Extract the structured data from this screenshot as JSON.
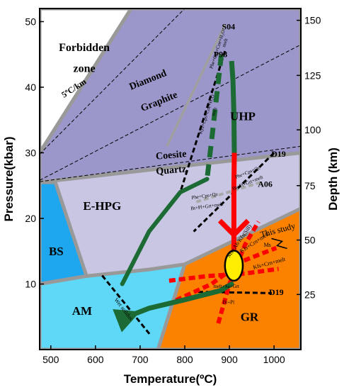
{
  "chart_data": {
    "type": "pt-diagram",
    "title": "",
    "xlabel": "Temperature(ºC)",
    "ylabel_left": "Pressure(kbar)",
    "ylabel_right": "Depth (km)",
    "xlim": [
      475,
      1060
    ],
    "ylim": [
      0,
      52
    ],
    "x_ticks": [
      500,
      600,
      700,
      800,
      900,
      1000
    ],
    "y_ticks": [
      10,
      20,
      30,
      40,
      50
    ],
    "right_ticks": [
      {
        "p": 8.4,
        "label": "25"
      },
      {
        "p": 16.7,
        "label": "50"
      },
      {
        "p": 25.0,
        "label": "75"
      },
      {
        "p": 33.5,
        "label": "100"
      },
      {
        "p": 41.8,
        "label": "125"
      },
      {
        "p": 50.2,
        "label": "150"
      }
    ],
    "colors": {
      "forbidden": "#ffffff",
      "uhp": "#9b97cb",
      "ehpg": "#c8c6e3",
      "bs": "#1ea7ee",
      "am": "#5fd8f7",
      "gr": "#fb8200",
      "boundary": "#999999",
      "path": "#1c6b34",
      "decompression": "#ff0000",
      "peak_ellipse": "#ffee00"
    },
    "fields": [
      {
        "key": "forbidden",
        "label_lines": [
          "Forbidden",
          "zone"
        ],
        "points": [
          [
            475,
            30
          ],
          [
            475,
            52
          ],
          [
            680,
            52
          ]
        ]
      },
      {
        "key": "uhp",
        "label_lines": [
          "UHP"
        ],
        "points": [
          [
            475,
            25.5
          ],
          [
            475,
            30
          ],
          [
            680,
            52
          ],
          [
            1060,
            52
          ],
          [
            1060,
            30
          ]
        ]
      },
      {
        "key": "ehpg",
        "label_lines": [
          "E-HPG"
        ],
        "points": [
          [
            475,
            25.5
          ],
          [
            1060,
            30
          ],
          [
            1060,
            21.5
          ],
          [
            800,
            13
          ],
          [
            720,
            12.2
          ],
          [
            580,
            11.2
          ],
          [
            510,
            25.5
          ]
        ]
      },
      {
        "key": "bs",
        "label_lines": [
          "BS"
        ],
        "points": [
          [
            475,
            25.5
          ],
          [
            510,
            25.5
          ],
          [
            580,
            11.2
          ],
          [
            475,
            10
          ]
        ]
      },
      {
        "key": "am",
        "label_lines": [
          "AM"
        ],
        "points": [
          [
            475,
            10
          ],
          [
            580,
            11.2
          ],
          [
            720,
            12.2
          ],
          [
            800,
            13
          ],
          [
            740,
            0
          ],
          [
            475,
            0
          ]
        ]
      },
      {
        "key": "gr",
        "label_lines": [
          "GR"
        ],
        "points": [
          [
            800,
            13
          ],
          [
            1060,
            21.5
          ],
          [
            1060,
            0
          ],
          [
            740,
            0
          ]
        ]
      }
    ],
    "field_labels": {
      "forbidden": [
        {
          "t": 575,
          "p": 45.5,
          "text": "Forbidden"
        },
        {
          "t": 575,
          "p": 42.3,
          "text": "zone"
        }
      ],
      "uhp": [
        {
          "t": 930,
          "p": 35,
          "text": "UHP"
        }
      ],
      "ehpg": [
        {
          "t": 615,
          "p": 21.3,
          "text": "E-HPG"
        }
      ],
      "bs": [
        {
          "t": 512,
          "p": 14.4,
          "text": "BS"
        }
      ],
      "am": [
        {
          "t": 570,
          "p": 5.3,
          "text": "AM"
        }
      ],
      "gr": [
        {
          "t": 945,
          "p": 4.4,
          "text": "GR"
        }
      ]
    },
    "reference_lines": [
      {
        "label": "5ºC/km",
        "label_pos": [
          555,
          39.5
        ],
        "label_rot": -33,
        "points": [
          [
            475,
            29.8
          ],
          [
            800,
            52
          ]
        ],
        "style": "thin-dash"
      },
      {
        "label": "Coesite",
        "label_pos": [
          770,
          29.2
        ],
        "label_rot": -5,
        "points": [
          [
            475,
            25.6
          ],
          [
            1060,
            31.0
          ]
        ],
        "style": "thin-dash"
      },
      {
        "label": "Quartz",
        "label_pos": [
          770,
          26.9
        ],
        "label_rot": -5,
        "points": [],
        "style": "none"
      },
      {
        "label": "Diamond",
        "label_pos": [
          720,
          40.7
        ],
        "label_rot": -22,
        "points": [
          [
            475,
            25.8
          ],
          [
            1060,
            46.5
          ]
        ],
        "style": "thin-dash"
      },
      {
        "label": "Graphite",
        "label_pos": [
          745,
          37.4
        ],
        "label_rot": -22,
        "points": [],
        "style": "none"
      },
      {
        "label": "S04",
        "label_pos": [
          898,
          48.8
        ],
        "label_rot": 0,
        "points": [
          [
            890,
            49.5
          ],
          [
            760,
            31
          ]
        ],
        "style": "gray-solid"
      },
      {
        "label": "P98",
        "label_pos": [
          880,
          44.6
        ],
        "label_rot": 0,
        "points": [
          [
            890,
            45.5
          ],
          [
            790,
            24
          ]
        ],
        "style": "black-dash"
      },
      {
        "label": "D19",
        "label_pos": [
          1010,
          29.4
        ],
        "label_rot": 0,
        "points": [
          [
            1000,
            30
          ],
          [
            820,
            18
          ]
        ],
        "style": "black-dash"
      },
      {
        "label": "A06",
        "label_pos": [
          980,
          24.8
        ],
        "label_rot": 0,
        "points": [
          [
            970,
            25.5
          ],
          [
            825,
            22.5
          ]
        ],
        "style": "gray-dash"
      },
      {
        "label": "D19",
        "label_pos": [
          1005,
          8.3
        ],
        "label_rot": 0,
        "points": [
          [
            830,
            8.8
          ],
          [
            995,
            8.6
          ]
        ],
        "style": "black-dash"
      },
      {
        "label": "",
        "label_pos": [
          0,
          0
        ],
        "label_rot": 0,
        "points": [
          [
            615,
            11.3
          ],
          [
            722,
            2.3
          ]
        ],
        "style": "black-dash"
      }
    ],
    "reaction_labels": [
      {
        "text": "Phe+Cps+Coe+H₂O",
        "t": 876,
        "p": 45.7,
        "rot": -72,
        "size": 7
      },
      {
        "text": "melt",
        "t": 893,
        "p": 46.7,
        "rot": -72,
        "size": 7
      },
      {
        "text": "Kyz+Cps+Coe+H₂O",
        "t": 852,
        "p": 35.8,
        "rot": -72,
        "size": 7
      },
      {
        "text": "melt",
        "t": 869,
        "p": 36.2,
        "rot": -72,
        "size": 7
      },
      {
        "text": "Phe+Cps+Qz",
        "t": 942,
        "p": 26.8,
        "rot": -22,
        "size": 7
      },
      {
        "text": "Bt+Pl+Grt+melt",
        "t": 942,
        "p": 25.2,
        "rot": -22,
        "size": 7
      },
      {
        "text": "Phe+Cps+Qz",
        "t": 845,
        "p": 23.2,
        "rot": -8,
        "size": 7
      },
      {
        "text": "Bt+Pl+Grt+melt",
        "t": 850,
        "p": 21.6,
        "rot": -8,
        "size": 7
      },
      {
        "text": "Ms+Ab/Kfs(Sill)",
        "t": 925,
        "p": 16.4,
        "rot": -55,
        "size": 8
      },
      {
        "text": "Kfs+Crn+melt",
        "t": 958,
        "p": 16.1,
        "rot": -33,
        "size": 8
      },
      {
        "text": "Ms",
        "t": 985,
        "p": 15.7,
        "rot": 0,
        "size": 8
      },
      {
        "text": "Kfs+Crn+melt",
        "t": 990,
        "p": 12.9,
        "rot": -15,
        "size": 8
      },
      {
        "text": "melt+Sa+Grt",
        "t": 893,
        "p": 9.4,
        "rot": 0,
        "size": 7
      },
      {
        "text": "Bt+Pl",
        "t": 898,
        "p": 7.0,
        "rot": 0,
        "size": 7
      },
      {
        "text": "Wet solidus",
        "t": 660,
        "p": 6.0,
        "rot": 52,
        "size": 8
      }
    ],
    "this_study_label": "This study",
    "this_study_pos": [
      1010,
      17.8
    ],
    "peak_ellipse": {
      "t": 910,
      "p": 12.8,
      "rt": 20,
      "rp": 2.3
    },
    "retrograde_path_green_solid": [
      [
        905,
        44
      ],
      [
        908,
        41
      ],
      [
        910,
        36
      ],
      [
        911,
        30
      ]
    ],
    "retrograde_path_green_dashed": [
      [
        882,
        45
      ],
      [
        862,
        33
      ],
      [
        850,
        26
      ]
    ],
    "prograde_path": [
      [
        850,
        26
      ],
      [
        790,
        24
      ],
      [
        720,
        18
      ],
      [
        675,
        12
      ],
      [
        660,
        10
      ]
    ],
    "decompression_red": [
      [
        911,
        30
      ],
      [
        910,
        25
      ],
      [
        910,
        18
      ],
      [
        910,
        14
      ]
    ],
    "retrograde_arrow": [
      [
        905,
        10
      ],
      [
        880,
        9
      ],
      [
        800,
        7.6
      ],
      [
        720,
        6.3
      ],
      [
        690,
        5.5
      ]
    ]
  }
}
